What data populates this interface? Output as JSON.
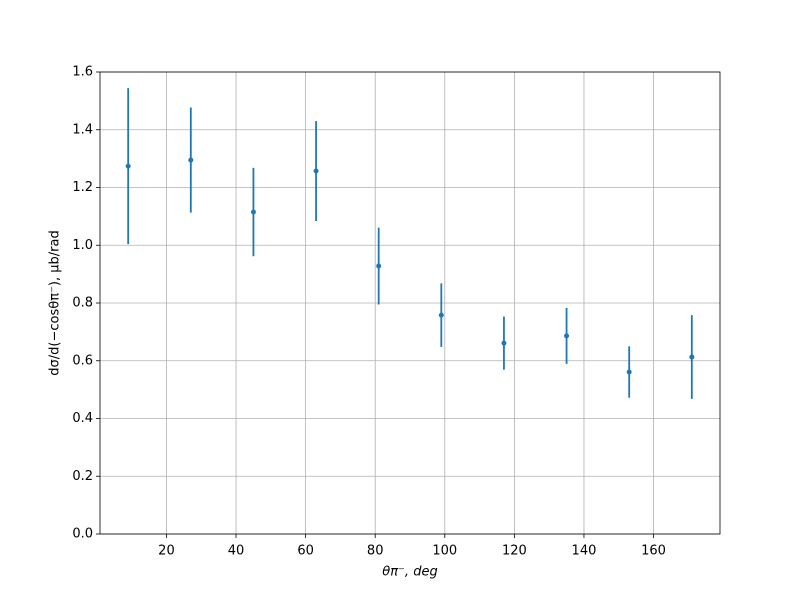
{
  "chart_data": {
    "type": "errorbar",
    "x_label": "θπ⁻, deg",
    "y_label": "dσ/d(−cosθπ⁻), μb/rad",
    "x": [
      9,
      27,
      45,
      63,
      81,
      99,
      117,
      135,
      153,
      171
    ],
    "series": [
      {
        "color": "#1f77b4",
        "values": [
          1.274,
          1.295,
          1.115,
          1.257,
          0.928,
          0.758,
          0.661,
          0.686,
          0.561,
          0.613
        ],
        "errors": [
          0.27,
          0.182,
          0.153,
          0.173,
          0.133,
          0.11,
          0.092,
          0.097,
          0.089,
          0.145
        ]
      }
    ],
    "xlim": [
      0.9,
      179.1
    ],
    "ylim": [
      0,
      1.6
    ],
    "xticks": [
      20,
      40,
      60,
      80,
      100,
      120,
      140,
      160
    ],
    "yticks": [
      {
        "value": 0,
        "label": "0.0"
      },
      {
        "value": 0.2,
        "label": "0.2"
      },
      {
        "value": 0.4,
        "label": "0.4"
      },
      {
        "value": 0.6,
        "label": "0.6"
      },
      {
        "value": 0.8,
        "label": "0.8"
      },
      {
        "value": 1,
        "label": "1.0"
      },
      {
        "value": 1.2,
        "label": "1.2"
      },
      {
        "value": 1.4,
        "label": "1.4"
      },
      {
        "value": 1.6,
        "label": "1.6"
      }
    ],
    "grid": true
  }
}
